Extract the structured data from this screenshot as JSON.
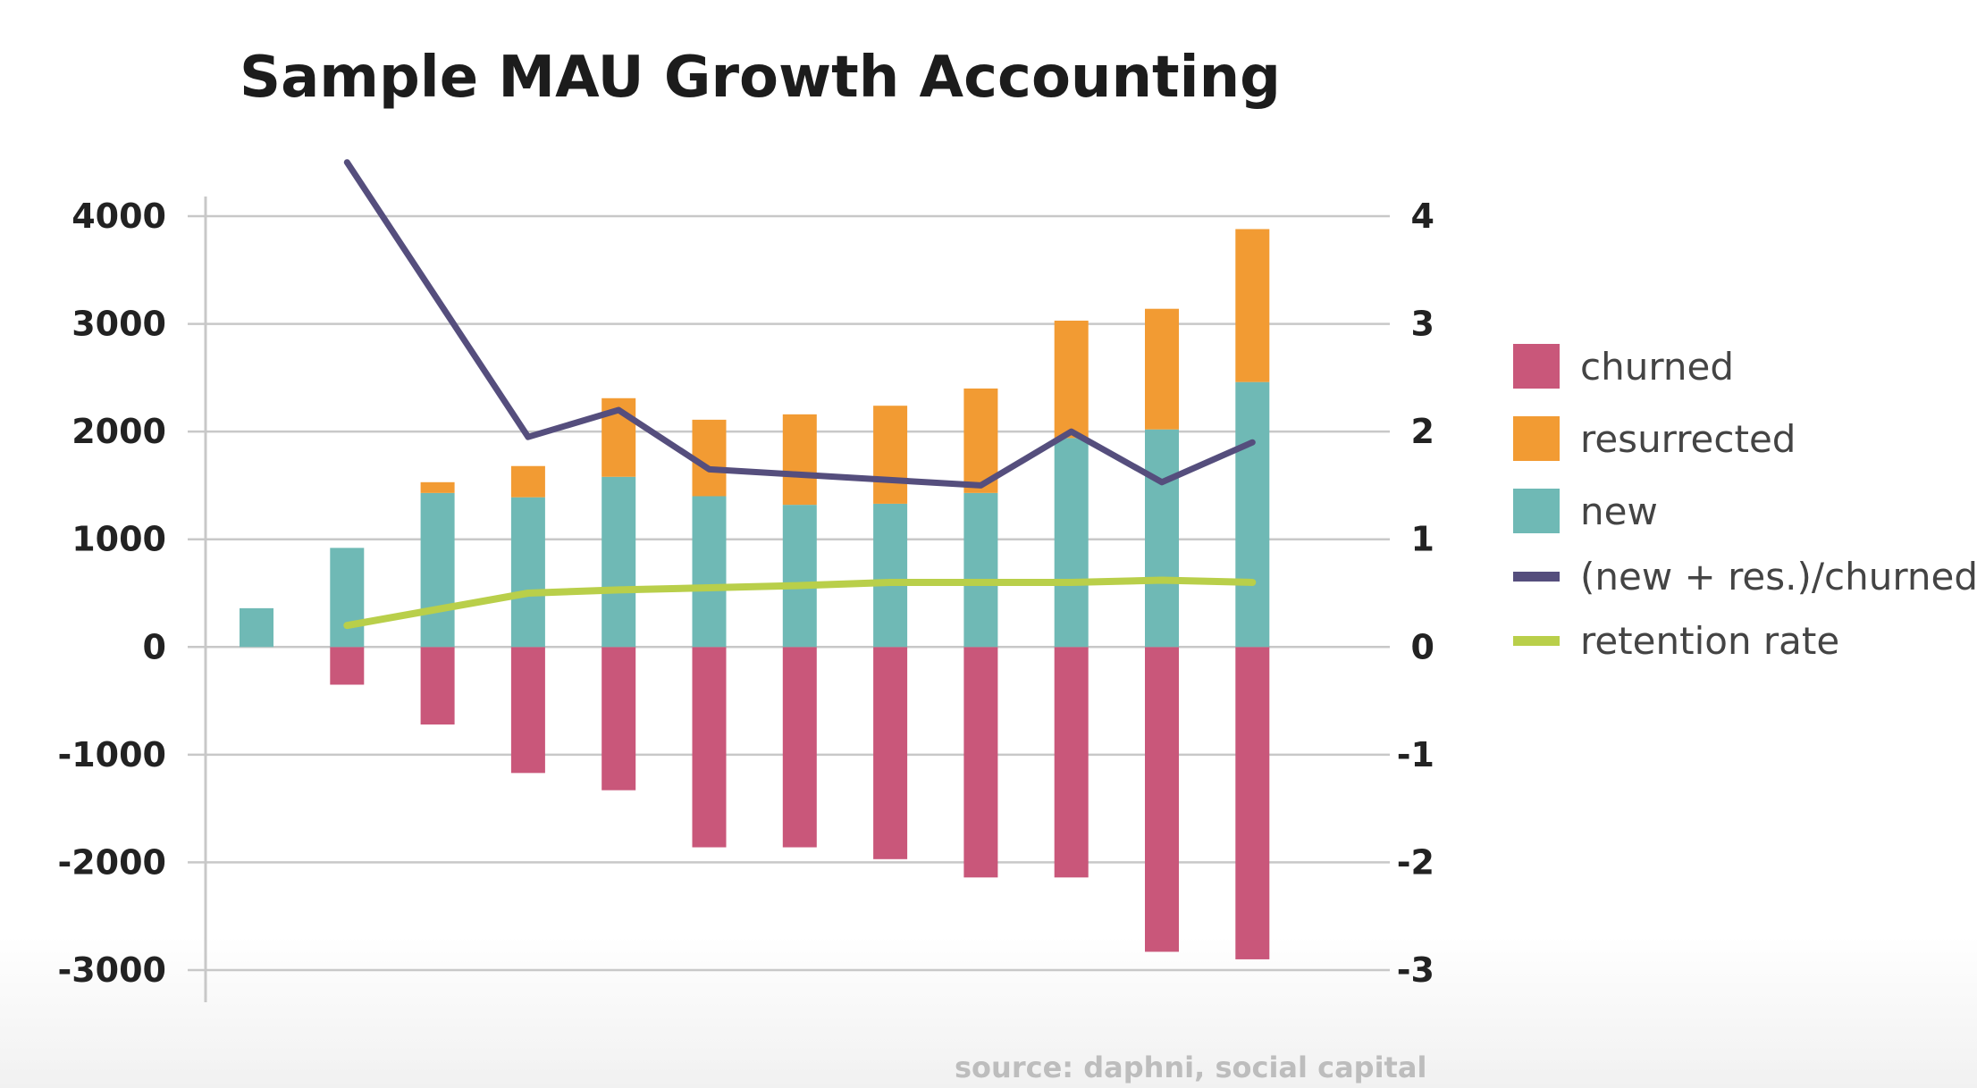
{
  "chart_data": {
    "type": "bar",
    "title": "Sample MAU Growth Accounting",
    "source": "source: daphni, social capital",
    "ylim_left": [
      -3000,
      4000
    ],
    "ylim_right": [
      -3,
      4
    ],
    "yticks_left": [
      "4000",
      "3000",
      "2000",
      "1000",
      "0",
      "-1000",
      "-2000",
      "-3000"
    ],
    "yticks_right": [
      "4",
      "3",
      "2",
      "1",
      "0",
      "-1",
      "-2",
      "-3"
    ],
    "grid": true,
    "legend_position": "right",
    "num_periods": 12,
    "bar_series": [
      {
        "name": "churned",
        "color": "#c9577a",
        "values": [
          0,
          -350,
          -720,
          -1170,
          -1330,
          -1860,
          -1860,
          -1970,
          -2140,
          -2140,
          -2830,
          -2900
        ]
      },
      {
        "name": "resurrected",
        "color": "#f29b33",
        "values": [
          0,
          0,
          100,
          290,
          730,
          710,
          840,
          910,
          970,
          1090,
          1120,
          1420
        ]
      },
      {
        "name": "new",
        "color": "#6fb9b5",
        "values": [
          360,
          920,
          1430,
          1390,
          1580,
          1400,
          1320,
          1330,
          1430,
          1940,
          2020,
          2460
        ]
      }
    ],
    "line_series": [
      {
        "name": "(new + res.)/churned",
        "color": "#554e7d",
        "axis": "right",
        "values": [
          null,
          4.5,
          null,
          1.95,
          2.2,
          1.65,
          1.6,
          1.55,
          1.5,
          2.0,
          1.53,
          1.9
        ]
      },
      {
        "name": "retention rate",
        "color": "#b9cf4a",
        "axis": "right",
        "values": [
          null,
          0.2,
          0.35,
          0.5,
          0.53,
          0.55,
          0.57,
          0.6,
          0.6,
          0.6,
          0.62,
          0.6
        ]
      }
    ]
  }
}
